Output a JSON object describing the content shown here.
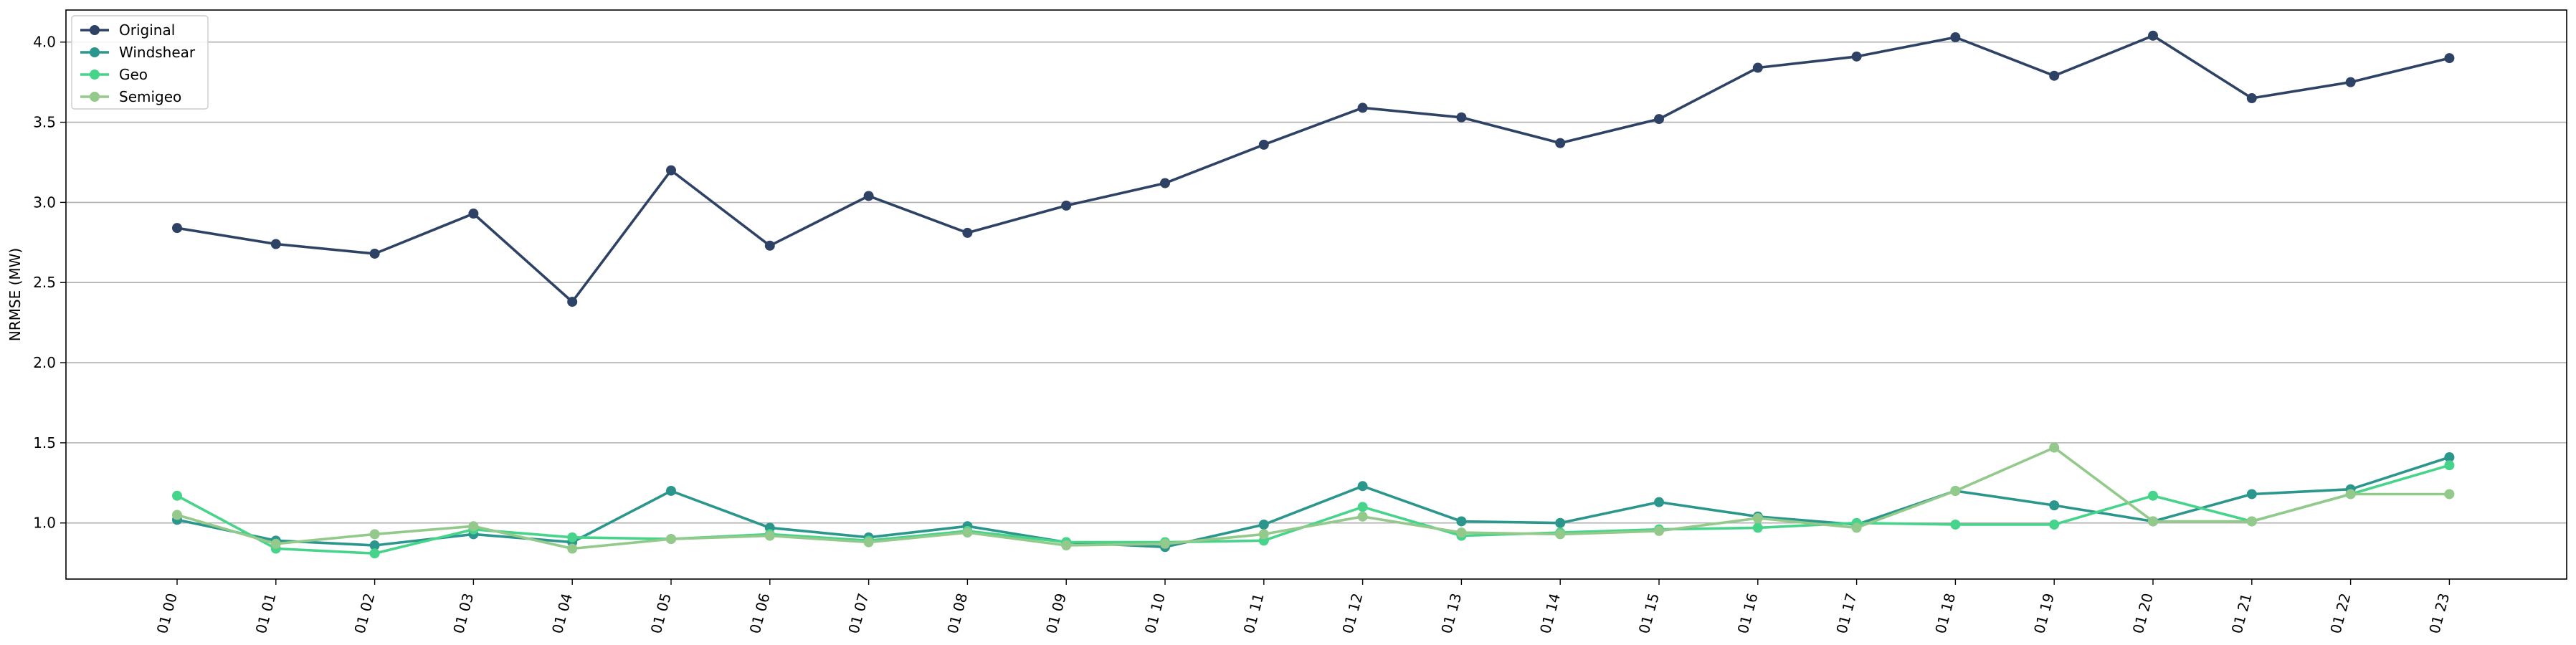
{
  "chart_data": {
    "type": "line",
    "title": "",
    "xlabel": "",
    "ylabel": "NRMSE (MW)",
    "categories": [
      "01 00",
      "01 01",
      "01 02",
      "01 03",
      "01 04",
      "01 05",
      "01 06",
      "01 07",
      "01 08",
      "01 09",
      "01 10",
      "01 11",
      "01 12",
      "01 13",
      "01 14",
      "01 15",
      "01 16",
      "01 17",
      "01 18",
      "01 19",
      "01 20",
      "01 21",
      "01 22",
      "01 23"
    ],
    "ylim": [
      0.65,
      4.2
    ],
    "yticks": [
      1.0,
      1.5,
      2.0,
      2.5,
      3.0,
      3.5,
      4.0
    ],
    "ytick_labels": [
      "1.0",
      "1.5",
      "2.0",
      "2.5",
      "3.0",
      "3.5",
      "4.0"
    ],
    "grid": "horizontal",
    "legend_position": "top-left",
    "series": [
      {
        "name": "Original",
        "color": "#2e4266",
        "values": [
          2.84,
          2.74,
          2.68,
          2.93,
          2.38,
          3.2,
          2.73,
          3.04,
          2.81,
          2.98,
          3.12,
          3.36,
          3.59,
          3.53,
          3.37,
          3.52,
          3.84,
          3.91,
          4.03,
          3.79,
          4.04,
          3.65,
          3.75,
          3.9
        ]
      },
      {
        "name": "Windshear",
        "color": "#2a968c",
        "values": [
          1.02,
          0.89,
          0.86,
          0.93,
          0.88,
          1.2,
          0.97,
          0.91,
          0.98,
          0.88,
          0.85,
          0.99,
          1.23,
          1.01,
          1.0,
          1.13,
          1.04,
          0.99,
          1.2,
          1.11,
          1.01,
          1.18,
          1.21,
          1.41
        ]
      },
      {
        "name": "Geo",
        "color": "#46d48a",
        "values": [
          1.17,
          0.84,
          0.81,
          0.96,
          0.91,
          0.9,
          0.93,
          0.89,
          0.95,
          0.88,
          0.88,
          0.89,
          1.1,
          0.92,
          0.94,
          0.96,
          0.97,
          1.0,
          0.99,
          0.99,
          1.17,
          1.01,
          1.18,
          1.36
        ]
      },
      {
        "name": "Semigeo",
        "color": "#93c98a",
        "values": [
          1.05,
          0.87,
          0.93,
          0.98,
          0.84,
          0.9,
          0.92,
          0.88,
          0.94,
          0.86,
          0.87,
          0.93,
          1.04,
          0.94,
          0.93,
          0.95,
          1.03,
          0.97,
          1.2,
          1.47,
          1.01,
          1.01,
          1.18,
          1.18
        ]
      }
    ]
  }
}
